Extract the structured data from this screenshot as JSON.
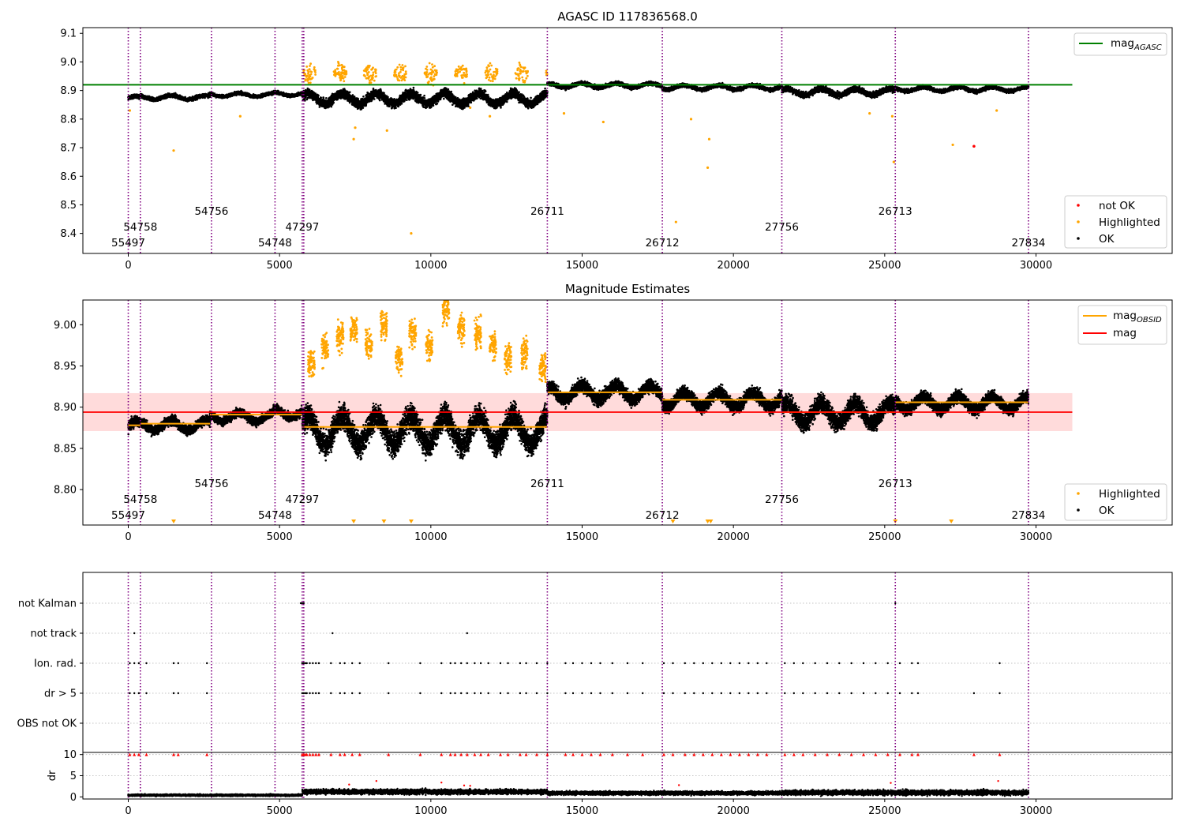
{
  "colors": {
    "ok": "#000000",
    "highlighted": "#ffa500",
    "not_ok": "#ff0000",
    "mag_agasc": "#008000",
    "mag_obsid": "#ffa500",
    "mag": "#ff0000",
    "obs_boundary": "#800080",
    "band": "#ffcccc"
  },
  "chart_data": [
    {
      "type": "scatter",
      "title": "AGASC ID 117836568.0",
      "xlim": [
        -1500,
        34500
      ],
      "ylim": [
        8.33,
        9.12
      ],
      "x_ticks": [
        0,
        5000,
        10000,
        15000,
        20000,
        25000,
        30000
      ],
      "x_tick_labels": [
        "0",
        "5000",
        "10000",
        "15000",
        "20000",
        "25000",
        "30000"
      ],
      "y_ticks": [
        8.4,
        8.5,
        8.6,
        8.7,
        8.8,
        8.9,
        9.0,
        9.1
      ],
      "y_tick_labels": [
        "8.4",
        "8.5",
        "8.6",
        "8.7",
        "8.8",
        "8.9",
        "9.0",
        "9.1"
      ],
      "legend_placement": "upper-right and lower-right",
      "legend_lines": [
        {
          "label": "mag",
          "sub": "AGASC"
        }
      ],
      "legend_points": [
        {
          "label": "not OK"
        },
        {
          "label": "Highlighted"
        },
        {
          "label": "OK"
        }
      ],
      "mag_agasc": 8.92,
      "series": [
        {
          "name": "OK",
          "segments": [
            {
              "x": [
                0,
                400
              ],
              "center": 8.873,
              "spread": 0.012
            },
            {
              "x": [
                400,
                2700
              ],
              "center": 8.876,
              "spread": 0.012
            },
            {
              "x": [
                2700,
                4800
              ],
              "center": 8.885,
              "spread": 0.01
            },
            {
              "x": [
                4800,
                5750
              ],
              "center": 8.888,
              "spread": 0.01
            },
            {
              "x": [
                5750,
                13850
              ],
              "center": 8.872,
              "spread": 0.03
            },
            {
              "x": [
                13850,
                17650
              ],
              "center": 8.918,
              "spread": 0.012
            },
            {
              "x": [
                17650,
                21600
              ],
              "center": 8.911,
              "spread": 0.012
            },
            {
              "x": [
                21600,
                25350
              ],
              "center": 8.895,
              "spread": 0.018
            },
            {
              "x": [
                25350,
                29750
              ],
              "center": 8.905,
              "spread": 0.012
            }
          ]
        },
        {
          "name": "Highlighted",
          "points": [
            [
              50,
              8.83
            ],
            [
              1500,
              8.69
            ],
            [
              3700,
              8.81
            ],
            [
              7450,
              8.73
            ],
            [
              7500,
              8.77
            ],
            [
              8550,
              8.76
            ],
            [
              9350,
              8.4
            ],
            [
              11300,
              8.84
            ],
            [
              11950,
              8.81
            ],
            [
              14400,
              8.82
            ],
            [
              15700,
              8.79
            ],
            [
              18100,
              8.44
            ],
            [
              18600,
              8.8
            ],
            [
              19150,
              8.63
            ],
            [
              19200,
              8.73
            ],
            [
              24500,
              8.82
            ],
            [
              25300,
              8.65
            ],
            [
              25250,
              8.81
            ],
            [
              27250,
              8.71
            ],
            [
              28700,
              8.83
            ]
          ]
        },
        {
          "name": "not OK",
          "points": [
            [
              27950,
              8.705
            ]
          ]
        }
      ]
    },
    {
      "type": "scatter",
      "title": "Magnitude Estimates",
      "xlim": [
        -1500,
        34500
      ],
      "ylim": [
        8.757,
        9.03
      ],
      "x_ticks": [
        0,
        5000,
        10000,
        15000,
        20000,
        25000,
        30000
      ],
      "x_tick_labels": [
        "0",
        "5000",
        "10000",
        "15000",
        "20000",
        "25000",
        "30000"
      ],
      "y_ticks": [
        8.8,
        8.85,
        8.9,
        8.95,
        9.0
      ],
      "y_tick_labels": [
        "8.80",
        "8.85",
        "8.90",
        "8.95",
        "9.00"
      ],
      "legend_placement": "upper-right and lower-right",
      "legend_lines": [
        {
          "label": "mag",
          "sub": "OBSID"
        },
        {
          "label": "mag",
          "sub": ""
        }
      ],
      "legend_points": [
        {
          "label": "Highlighted"
        },
        {
          "label": "OK"
        }
      ],
      "mag": 8.894,
      "mag_band": [
        8.871,
        8.917
      ],
      "mag_obsid": [
        {
          "x": [
            0,
            400
          ],
          "value": 8.878
        },
        {
          "x": [
            400,
            2700
          ],
          "value": 8.88
        },
        {
          "x": [
            2700,
            5750
          ],
          "value": 8.891
        },
        {
          "x": [
            5750,
            13850
          ],
          "value": 8.876
        },
        {
          "x": [
            13850,
            17650
          ],
          "value": 8.918
        },
        {
          "x": [
            17650,
            21600
          ],
          "value": 8.909
        },
        {
          "x": [
            21600,
            25350
          ],
          "value": 8.894
        },
        {
          "x": [
            25350,
            29750
          ],
          "value": 8.906
        }
      ],
      "series": [
        {
          "name": "OK",
          "segments": [
            {
              "x": [
                0,
                400
              ],
              "center": 8.876,
              "spread": 0.012
            },
            {
              "x": [
                400,
                2700
              ],
              "center": 8.878,
              "spread": 0.01
            },
            {
              "x": [
                2700,
                4800
              ],
              "center": 8.888,
              "spread": 0.009
            },
            {
              "x": [
                4800,
                5750
              ],
              "center": 8.893,
              "spread": 0.009
            },
            {
              "x": [
                5750,
                13850
              ],
              "center": 8.872,
              "spread": 0.028
            },
            {
              "x": [
                13850,
                17650
              ],
              "center": 8.918,
              "spread": 0.014
            },
            {
              "x": [
                17650,
                21600
              ],
              "center": 8.909,
              "spread": 0.014
            },
            {
              "x": [
                21600,
                25350
              ],
              "center": 8.893,
              "spread": 0.02
            },
            {
              "x": [
                25350,
                29750
              ],
              "center": 8.905,
              "spread": 0.013
            }
          ]
        },
        {
          "name": "Highlighted",
          "clusters": [
            [
              6050,
              8.955
            ],
            [
              6500,
              8.97
            ],
            [
              7000,
              8.985
            ],
            [
              7450,
              8.995
            ],
            [
              7950,
              8.975
            ],
            [
              8450,
              9.0
            ],
            [
              8950,
              8.96
            ],
            [
              9400,
              8.99
            ],
            [
              9950,
              8.975
            ],
            [
              10500,
              9.02
            ],
            [
              11000,
              8.995
            ],
            [
              11550,
              8.99
            ],
            [
              12050,
              8.975
            ],
            [
              12550,
              8.96
            ],
            [
              13100,
              8.965
            ],
            [
              13700,
              8.95
            ]
          ]
        }
      ]
    },
    {
      "type": "scatter",
      "title": "",
      "xlim": [
        -1500,
        34500
      ],
      "y_categories": [
        "not Kalman",
        "not track",
        "Ion. rad.",
        "dr > 5",
        "OBS not OK"
      ],
      "x_ticks": [
        0,
        5000,
        10000,
        15000,
        20000,
        25000,
        30000
      ],
      "x_tick_labels": [
        "0",
        "5000",
        "10000",
        "15000",
        "20000",
        "25000",
        "30000"
      ],
      "flags": {
        "not Kalman": [
          5700,
          5750,
          5800,
          25350
        ],
        "not track": [
          200,
          6750,
          11200
        ],
        "Ion. rad.": [
          50,
          200,
          350,
          600,
          1500,
          1650,
          2600,
          5750,
          5800,
          5850,
          5900,
          6000,
          6100,
          6200,
          6300,
          6700,
          7000,
          7150,
          7400,
          7650,
          8600,
          9650,
          10350,
          10650,
          10800,
          11000,
          11200,
          11450,
          11650,
          11900,
          12300,
          12550,
          12950,
          13150,
          13500,
          13850,
          14450,
          14700,
          15000,
          15300,
          15600,
          16000,
          16500,
          17000,
          17700,
          18000,
          18400,
          18700,
          19000,
          19300,
          19600,
          19900,
          20200,
          20500,
          20800,
          21100,
          21700,
          22000,
          22300,
          22700,
          23100,
          23500,
          23900,
          24300,
          24700,
          25100,
          25500,
          25900,
          26100,
          28800
        ],
        "dr > 5": [
          50,
          200,
          350,
          600,
          1500,
          1650,
          2600,
          5750,
          5800,
          5850,
          5900,
          6000,
          6100,
          6200,
          6300,
          6700,
          7000,
          7150,
          7400,
          7650,
          8600,
          9650,
          10350,
          10650,
          10800,
          11000,
          11200,
          11450,
          11650,
          11900,
          12300,
          12550,
          12950,
          13150,
          13500,
          13850,
          14450,
          14700,
          15000,
          15300,
          15600,
          16000,
          16500,
          17000,
          17700,
          18000,
          18400,
          18700,
          19000,
          19300,
          19600,
          19900,
          20200,
          20500,
          20800,
          21100,
          21700,
          22000,
          22300,
          22700,
          23100,
          23500,
          23900,
          24300,
          24700,
          25100,
          25500,
          25900,
          26100,
          27950,
          28800
        ],
        "OBS not OK": []
      }
    },
    {
      "type": "scatter",
      "title": "",
      "ylabel": "dr",
      "xlim": [
        -1500,
        34500
      ],
      "ylim": [
        -0.5,
        10.5
      ],
      "x_ticks": [
        0,
        5000,
        10000,
        15000,
        20000,
        25000,
        30000
      ],
      "x_tick_labels": [
        "0",
        "5000",
        "10000",
        "15000",
        "20000",
        "25000",
        "30000"
      ],
      "y_ticks": [
        0,
        5,
        10
      ],
      "y_tick_labels": [
        "0",
        "5",
        "10"
      ],
      "segments": [
        {
          "x": [
            0,
            5750
          ],
          "center": 0.4,
          "spread": 0.3
        },
        {
          "x": [
            5750,
            13850
          ],
          "center": 1.2,
          "spread": 0.8
        },
        {
          "x": [
            13850,
            21600
          ],
          "center": 0.9,
          "spread": 0.6
        },
        {
          "x": [
            21600,
            29750
          ],
          "center": 1.0,
          "spread": 0.8
        }
      ],
      "clipped_at": 10
    }
  ],
  "observations": [
    {
      "obsid": "55497",
      "start": 0,
      "row": 0
    },
    {
      "obsid": "54758",
      "start": 400,
      "row": 1
    },
    {
      "obsid": "54756",
      "start": 2750,
      "row": 2
    },
    {
      "obsid": "54748",
      "start": 4850,
      "row": 0
    },
    {
      "obsid": "47297",
      "start": 5750,
      "row": 1
    },
    {
      "obsid": "26711",
      "start": 13850,
      "row": 2
    },
    {
      "obsid": "26712",
      "start": 17650,
      "row": 0
    },
    {
      "obsid": "27756",
      "start": 21600,
      "row": 1
    },
    {
      "obsid": "26713",
      "start": 25350,
      "row": 2
    },
    {
      "obsid": "27834",
      "start": 29750,
      "row": 0
    }
  ],
  "boundaries": [
    0,
    400,
    2750,
    4850,
    5750,
    5800,
    13850,
    17650,
    21600,
    25350,
    29750
  ]
}
